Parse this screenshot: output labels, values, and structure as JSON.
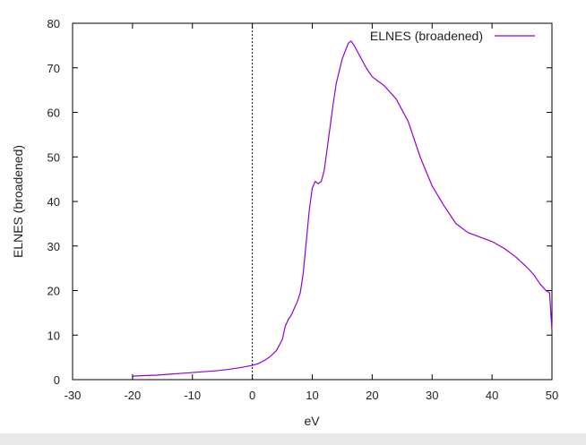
{
  "chart_data": {
    "type": "line",
    "title": "",
    "xlabel": "eV",
    "ylabel": "ELNES (broadened)",
    "xlim": [
      -30,
      50
    ],
    "ylim": [
      0,
      80
    ],
    "xticks": [
      -30,
      -20,
      -10,
      0,
      10,
      20,
      30,
      40,
      50
    ],
    "yticks": [
      0,
      10,
      20,
      30,
      40,
      50,
      60,
      70,
      80
    ],
    "grid": false,
    "legend_position": "top-right",
    "reference_line_x": 0,
    "series": [
      {
        "name": "ELNES (broadened)",
        "color": "#9400d3",
        "x": [
          -20,
          -19.8,
          -18,
          -16,
          -14,
          -12,
          -10,
          -8,
          -6,
          -4,
          -2,
          0,
          1,
          2,
          3,
          4,
          5,
          5.5,
          6,
          6.5,
          7,
          7.5,
          8,
          8.5,
          9,
          9.5,
          10,
          10.5,
          11,
          11.5,
          12,
          12.5,
          13,
          13.5,
          14,
          15,
          16,
          16.5,
          17,
          18,
          19,
          20,
          22,
          24,
          26,
          28,
          30,
          32,
          34,
          36,
          38,
          40,
          42,
          44,
          46,
          47,
          48,
          49,
          49.6,
          50
        ],
        "values": [
          0.5,
          0.8,
          0.9,
          1.0,
          1.2,
          1.4,
          1.6,
          1.8,
          2.0,
          2.3,
          2.7,
          3.2,
          3.6,
          4.3,
          5.2,
          6.5,
          9.0,
          12.0,
          13.5,
          14.5,
          16.0,
          17.5,
          19.5,
          24.0,
          31.0,
          38.0,
          43.0,
          44.5,
          44.0,
          44.5,
          47.0,
          52.0,
          57.0,
          62.0,
          66.5,
          72.0,
          75.5,
          76.0,
          75.0,
          72.5,
          70.0,
          68.0,
          66.0,
          63.0,
          58.0,
          50.0,
          43.5,
          39.0,
          35.0,
          33.0,
          32.0,
          31.0,
          29.5,
          27.5,
          25.0,
          23.5,
          21.5,
          20.0,
          19.5,
          11.0
        ]
      }
    ]
  }
}
